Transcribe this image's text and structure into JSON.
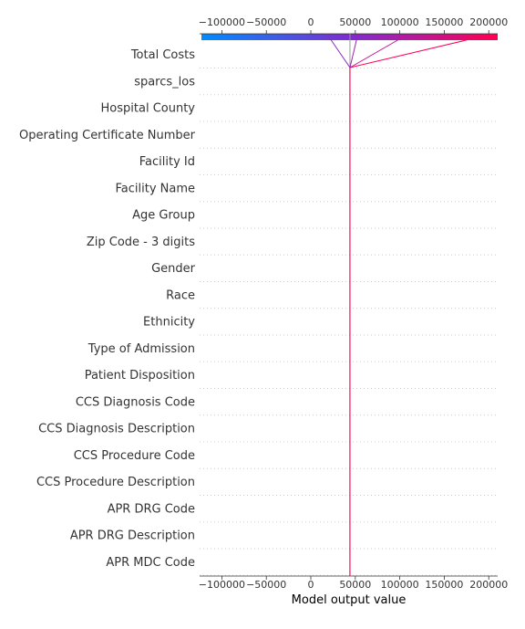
{
  "chart_data": {
    "type": "shap_decision_plot",
    "xlabel": "Model output value",
    "xlim": [
      -125000,
      210000
    ],
    "xticks": [
      -100000,
      -50000,
      0,
      50000,
      100000,
      150000,
      200000
    ],
    "xtick_labels": [
      "−100000",
      "−50000",
      "0",
      "50000",
      "100000",
      "150000",
      "200000"
    ],
    "base_value": 44000,
    "features": [
      "Total Costs",
      "sparcs_los",
      "Hospital County",
      "Operating Certificate Number",
      "Facility Id",
      "Facility Name",
      "Age Group",
      "Zip Code - 3 digits",
      "Gender",
      "Race",
      "Ethnicity",
      "Type of Admission",
      "Patient Disposition",
      "CCS Diagnosis Code",
      "CCS Diagnosis Description",
      "CCS Procedure Code",
      "CCS Procedure Description",
      "APR DRG Code",
      "APR DRG Description",
      "APR MDC Code"
    ],
    "samples": [
      {
        "final_output": 18000,
        "color": "#8a2bc0"
      },
      {
        "final_output": 53000,
        "color": "#9f1fb2"
      },
      {
        "final_output": 110000,
        "color": "#c4119c"
      },
      {
        "final_output": 205000,
        "color": "#ff0052"
      }
    ],
    "colorbar": {
      "min_color": "#008bfb",
      "mid_color": "#7d2ed0",
      "max_color": "#ff0052"
    },
    "grid": "dotted horizontal per feature"
  }
}
